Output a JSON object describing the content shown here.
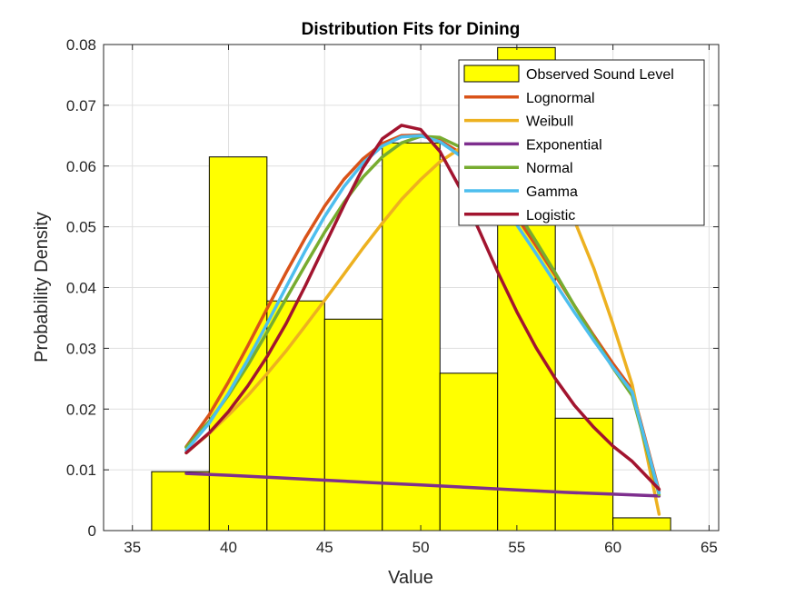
{
  "chart_data": {
    "type": "bar",
    "title": "Distribution Fits for Dining",
    "xlabel": "Value",
    "ylabel": "Probability Density",
    "xlim": [
      33.5,
      65.5
    ],
    "ylim": [
      0,
      0.08
    ],
    "xticks": [
      35,
      40,
      45,
      50,
      55,
      60,
      65
    ],
    "yticks": [
      0,
      0.01,
      0.02,
      0.03,
      0.04,
      0.05,
      0.06,
      0.07,
      0.08
    ],
    "ytick_labels": [
      "0",
      "0.01",
      "0.02",
      "0.03",
      "0.04",
      "0.05",
      "0.06",
      "0.07",
      "0.08"
    ],
    "grid": true,
    "legend_position": "top-right",
    "histogram": {
      "name": "Observed Sound Level",
      "color": "#FFFF00",
      "edges": [
        36,
        39,
        42,
        45,
        48,
        51,
        54,
        57,
        60,
        63
      ],
      "values": [
        0.0097,
        0.0615,
        0.0378,
        0.0348,
        0.0638,
        0.0259,
        0.0795,
        0.0185,
        0.0021
      ]
    },
    "series": [
      {
        "name": "Lognormal",
        "color": "#D95319",
        "x": [
          37.8,
          39,
          40,
          41,
          42,
          43,
          44,
          45,
          46,
          47,
          48,
          49,
          50,
          51,
          52,
          53,
          54,
          55,
          56,
          57,
          58,
          59,
          60,
          61,
          62.4
        ],
        "values": [
          0.0138,
          0.0191,
          0.0245,
          0.0304,
          0.0365,
          0.0425,
          0.0482,
          0.0534,
          0.0578,
          0.0612,
          0.0637,
          0.065,
          0.0651,
          0.0642,
          0.0623,
          0.0595,
          0.0558,
          0.0516,
          0.0469,
          0.042,
          0.037,
          0.0321,
          0.0275,
          0.0232,
          0.0065
        ]
      },
      {
        "name": "Weibull",
        "color": "#EDB120",
        "x": [
          37.8,
          39,
          40,
          41,
          42,
          43,
          44,
          45,
          46,
          47,
          48,
          49,
          50,
          51,
          52,
          53,
          54,
          55,
          56,
          57,
          58,
          59,
          60,
          61,
          62.4
        ],
        "values": [
          0.0128,
          0.016,
          0.019,
          0.0222,
          0.0258,
          0.0296,
          0.0337,
          0.0379,
          0.0422,
          0.0465,
          0.0506,
          0.0545,
          0.0578,
          0.0607,
          0.0628,
          0.064,
          0.0642,
          0.0632,
          0.0608,
          0.0568,
          0.051,
          0.0432,
          0.034,
          0.024,
          0.0027
        ]
      },
      {
        "name": "Exponential",
        "color": "#7E2F8E",
        "x": [
          37.8,
          40,
          42.5,
          45,
          47.5,
          50,
          52.5,
          55,
          57.5,
          60,
          62.4
        ],
        "values": [
          0.0094,
          0.0091,
          0.0087,
          0.0083,
          0.0079,
          0.0075,
          0.0071,
          0.0067,
          0.0063,
          0.006,
          0.0057
        ]
      },
      {
        "name": "Normal",
        "color": "#77AC30",
        "x": [
          37.8,
          39,
          40,
          41,
          42,
          43,
          44,
          45,
          46,
          47,
          48,
          49,
          50,
          51,
          52,
          53,
          54,
          55,
          56,
          57,
          58,
          59,
          60,
          61,
          62.4
        ],
        "values": [
          0.0137,
          0.018,
          0.0223,
          0.0272,
          0.0326,
          0.0382,
          0.0437,
          0.0491,
          0.054,
          0.0582,
          0.0615,
          0.0638,
          0.0649,
          0.0647,
          0.0632,
          0.0606,
          0.057,
          0.0526,
          0.0476,
          0.0424,
          0.037,
          0.0318,
          0.0268,
          0.0222,
          0.0059
        ]
      },
      {
        "name": "Gamma",
        "color": "#4DBEEE",
        "x": [
          37.8,
          39,
          40,
          41,
          42,
          43,
          44,
          45,
          46,
          47,
          48,
          49,
          50,
          51,
          52,
          53,
          54,
          55,
          56,
          57,
          58,
          59,
          60,
          61,
          62.4
        ],
        "values": [
          0.0132,
          0.0177,
          0.0226,
          0.0281,
          0.034,
          0.0401,
          0.0461,
          0.0517,
          0.0566,
          0.0605,
          0.0633,
          0.0648,
          0.065,
          0.064,
          0.0618,
          0.0586,
          0.0547,
          0.0503,
          0.0456,
          0.0407,
          0.0359,
          0.0313,
          0.0269,
          0.0228,
          0.0062
        ]
      },
      {
        "name": "Logistic",
        "color": "#A2142F",
        "x": [
          37.8,
          39,
          40,
          41,
          42,
          43,
          44,
          45,
          46,
          47,
          48,
          49,
          50,
          51,
          52,
          53,
          54,
          55,
          56,
          57,
          58,
          59,
          60,
          61,
          62.4
        ],
        "values": [
          0.0128,
          0.0161,
          0.0196,
          0.0238,
          0.0286,
          0.0341,
          0.0403,
          0.0469,
          0.0535,
          0.0597,
          0.0645,
          0.0667,
          0.066,
          0.0624,
          0.0566,
          0.0497,
          0.0426,
          0.036,
          0.0301,
          0.025,
          0.0206,
          0.017,
          0.0139,
          0.0114,
          0.0068
        ]
      }
    ]
  }
}
